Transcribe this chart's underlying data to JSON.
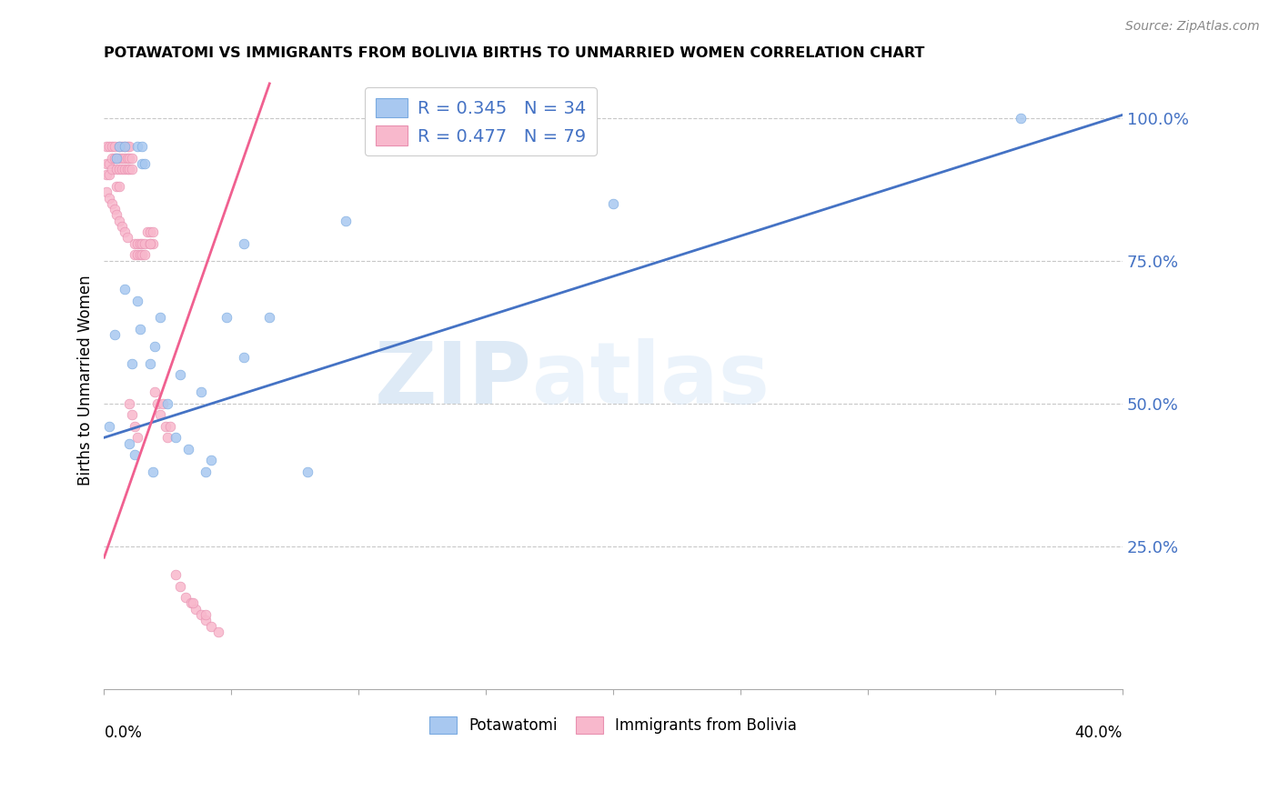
{
  "title": "POTAWATOMI VS IMMIGRANTS FROM BOLIVIA BIRTHS TO UNMARRIED WOMEN CORRELATION CHART",
  "source": "Source: ZipAtlas.com",
  "ylabel": "Births to Unmarried Women",
  "ytick_labels": [
    "100.0%",
    "75.0%",
    "50.0%",
    "25.0%"
  ],
  "ytick_values": [
    1.0,
    0.75,
    0.5,
    0.25
  ],
  "xlim": [
    0.0,
    0.4
  ],
  "ylim": [
    0.0,
    1.08
  ],
  "blue_R": 0.345,
  "blue_N": 34,
  "pink_R": 0.477,
  "pink_N": 79,
  "blue_color": "#A8C8F0",
  "pink_color": "#F8B8CC",
  "blue_line_color": "#4472C4",
  "pink_line_color": "#F06090",
  "legend_text_color": "#4472C4",
  "watermark_zip": "ZIP",
  "watermark_atlas": "atlas",
  "blue_line_x": [
    0.0,
    0.4
  ],
  "blue_line_y": [
    0.44,
    1.005
  ],
  "pink_line_x": [
    0.0,
    0.065
  ],
  "pink_line_y": [
    0.23,
    1.06
  ],
  "blue_points_x": [
    0.002,
    0.004,
    0.006,
    0.008,
    0.01,
    0.011,
    0.012,
    0.013,
    0.014,
    0.015,
    0.016,
    0.018,
    0.019,
    0.022,
    0.025,
    0.028,
    0.033,
    0.04,
    0.048,
    0.055,
    0.065,
    0.095,
    0.2,
    0.36,
    0.005,
    0.008,
    0.013,
    0.015,
    0.02,
    0.03,
    0.038,
    0.042,
    0.055,
    0.08
  ],
  "blue_points_y": [
    0.46,
    0.62,
    0.95,
    0.95,
    0.43,
    0.57,
    0.41,
    0.95,
    0.63,
    0.92,
    0.92,
    0.57,
    0.38,
    0.65,
    0.5,
    0.44,
    0.42,
    0.38,
    0.65,
    0.58,
    0.65,
    0.82,
    0.85,
    1.0,
    0.93,
    0.7,
    0.68,
    0.95,
    0.6,
    0.55,
    0.52,
    0.4,
    0.78,
    0.38
  ],
  "pink_points_x": [
    0.001,
    0.001,
    0.001,
    0.002,
    0.002,
    0.002,
    0.003,
    0.003,
    0.003,
    0.004,
    0.004,
    0.005,
    0.005,
    0.005,
    0.006,
    0.006,
    0.006,
    0.006,
    0.007,
    0.007,
    0.007,
    0.008,
    0.008,
    0.008,
    0.009,
    0.009,
    0.009,
    0.01,
    0.01,
    0.01,
    0.011,
    0.011,
    0.012,
    0.012,
    0.013,
    0.013,
    0.014,
    0.014,
    0.015,
    0.015,
    0.016,
    0.016,
    0.017,
    0.018,
    0.018,
    0.019,
    0.019,
    0.02,
    0.021,
    0.022,
    0.023,
    0.024,
    0.025,
    0.026,
    0.028,
    0.03,
    0.032,
    0.034,
    0.036,
    0.038,
    0.04,
    0.042,
    0.045,
    0.001,
    0.002,
    0.003,
    0.004,
    0.005,
    0.006,
    0.007,
    0.008,
    0.009,
    0.01,
    0.011,
    0.012,
    0.013,
    0.018,
    0.035,
    0.04
  ],
  "pink_points_y": [
    0.95,
    0.92,
    0.9,
    0.95,
    0.92,
    0.9,
    0.95,
    0.93,
    0.91,
    0.95,
    0.93,
    0.93,
    0.91,
    0.88,
    0.95,
    0.93,
    0.91,
    0.88,
    0.95,
    0.93,
    0.91,
    0.95,
    0.93,
    0.91,
    0.95,
    0.93,
    0.91,
    0.95,
    0.93,
    0.91,
    0.93,
    0.91,
    0.78,
    0.76,
    0.78,
    0.76,
    0.78,
    0.76,
    0.78,
    0.76,
    0.78,
    0.76,
    0.8,
    0.8,
    0.78,
    0.8,
    0.78,
    0.52,
    0.5,
    0.48,
    0.5,
    0.46,
    0.44,
    0.46,
    0.2,
    0.18,
    0.16,
    0.15,
    0.14,
    0.13,
    0.12,
    0.11,
    0.1,
    0.87,
    0.86,
    0.85,
    0.84,
    0.83,
    0.82,
    0.81,
    0.8,
    0.79,
    0.5,
    0.48,
    0.46,
    0.44,
    0.78,
    0.15,
    0.13
  ]
}
